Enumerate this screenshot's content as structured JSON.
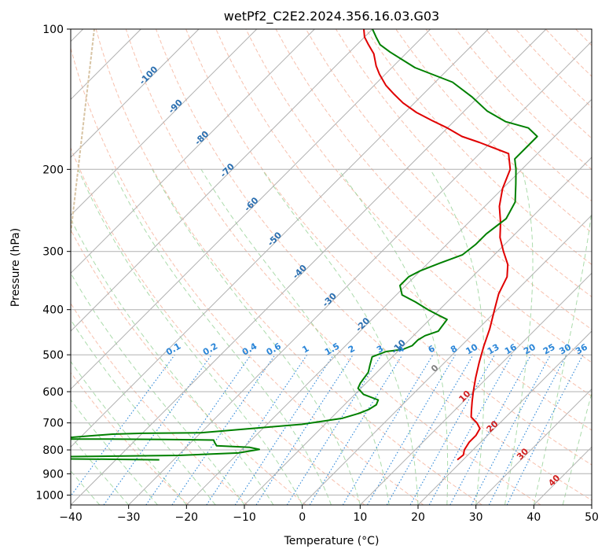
{
  "chart_data": {
    "type": "skew-t",
    "title": "wetPf2_C2E2.2024.356.16.03.G03",
    "xlabel": "Temperature (°C)",
    "ylabel": "Pressure (hPa)",
    "xlim": [
      -40,
      50
    ],
    "ylim": [
      1050,
      100
    ],
    "x_ticks": [
      "−40",
      "−30",
      "−20",
      "−10",
      "0",
      "10",
      "20",
      "30",
      "40",
      "50"
    ],
    "x_tick_values": [
      -40,
      -30,
      -20,
      -10,
      0,
      10,
      20,
      30,
      40,
      50
    ],
    "y_ticks": [
      "100",
      "200",
      "300",
      "400",
      "500",
      "600",
      "700",
      "800",
      "900",
      "1000"
    ],
    "y_tick_values": [
      100,
      200,
      300,
      400,
      500,
      600,
      700,
      800,
      900,
      1000
    ],
    "grid": true,
    "colors": {
      "temperature": "#e00000",
      "dewpoint": "#008000",
      "isotherm_grid": "#b0b0b0",
      "dry_adiabat": "#f4a58a",
      "moist_adiabat": "#8fcf8f",
      "mixing_ratio": "#2b86d8",
      "isotherm_label": "#2b6fb0",
      "positive_label": "#d02020",
      "zero_label": "#808080",
      "lcl_curve": "#d8c4a4"
    },
    "series": [
      {
        "name": "Temperature",
        "points": [
          [
            19,
            840
          ],
          [
            19.2,
            820
          ],
          [
            18.5,
            800
          ],
          [
            18,
            770
          ],
          [
            18,
            745
          ],
          [
            17.5,
            720
          ],
          [
            16,
            700
          ],
          [
            14,
            680
          ],
          [
            13,
            660
          ],
          [
            11.5,
            630
          ],
          [
            10,
            600
          ],
          [
            8,
            560
          ],
          [
            6,
            520
          ],
          [
            4,
            480
          ],
          [
            2,
            440
          ],
          [
            -0.5,
            400
          ],
          [
            -2.5,
            370
          ],
          [
            -4,
            340
          ],
          [
            -6,
            320
          ],
          [
            -9,
            300
          ],
          [
            -12,
            280
          ],
          [
            -14.5,
            260
          ],
          [
            -17.5,
            240
          ],
          [
            -20,
            220
          ],
          [
            -22,
            200
          ],
          [
            -25,
            185
          ],
          [
            -32,
            175
          ],
          [
            -36,
            170
          ],
          [
            -40,
            163
          ],
          [
            -44,
            157
          ],
          [
            -48,
            151
          ],
          [
            -52,
            144
          ],
          [
            -55,
            138
          ],
          [
            -58,
            132
          ],
          [
            -61,
            125
          ],
          [
            -63,
            120
          ],
          [
            -65.5,
            113
          ],
          [
            -68,
            108
          ],
          [
            -70,
            104
          ],
          [
            -71.5,
            100
          ]
        ]
      },
      {
        "name": "Dewpoint",
        "points": [
          [
            -32.5,
            840
          ],
          [
            -40,
            838
          ],
          [
            -55,
            835
          ],
          [
            -60,
            830
          ],
          [
            -30,
            822
          ],
          [
            -20,
            812
          ],
          [
            -17,
            798
          ],
          [
            -19,
            790
          ],
          [
            -25,
            784
          ],
          [
            -26,
            770
          ],
          [
            -26.5,
            762
          ],
          [
            -35,
            760
          ],
          [
            -45,
            758
          ],
          [
            -55,
            758
          ],
          [
            -45,
            740
          ],
          [
            -40,
            737
          ],
          [
            -30,
            735
          ],
          [
            -14,
            705
          ],
          [
            -8,
            684
          ],
          [
            -6,
            668
          ],
          [
            -5,
            655
          ],
          [
            -4.5,
            640
          ],
          [
            -5,
            625
          ],
          [
            -8.5,
            608
          ],
          [
            -10.5,
            590
          ],
          [
            -11,
            575
          ],
          [
            -11.5,
            545
          ],
          [
            -12.5,
            525
          ],
          [
            -13.5,
            505
          ],
          [
            -12,
            492
          ],
          [
            -9.5,
            487
          ],
          [
            -8.5,
            478
          ],
          [
            -8.5,
            465
          ],
          [
            -8,
            455
          ],
          [
            -6.5,
            445
          ],
          [
            -7,
            420
          ],
          [
            -9.5,
            410
          ],
          [
            -12,
            400
          ],
          [
            -15.5,
            385
          ],
          [
            -19,
            372
          ],
          [
            -21,
            355
          ],
          [
            -21,
            340
          ],
          [
            -20,
            330
          ],
          [
            -18,
            318
          ],
          [
            -15.5,
            305
          ],
          [
            -15,
            290
          ],
          [
            -15,
            275
          ],
          [
            -14.2,
            255
          ],
          [
            -15.5,
            235
          ],
          [
            -18.5,
            215
          ],
          [
            -21,
            200
          ],
          [
            -23,
            190
          ],
          [
            -23,
            175
          ],
          [
            -23,
            170
          ],
          [
            -26,
            163
          ],
          [
            -31,
            158
          ],
          [
            -36,
            150
          ],
          [
            -41,
            140
          ],
          [
            -47,
            130
          ],
          [
            -56,
            121
          ],
          [
            -63,
            112
          ],
          [
            -66,
            108
          ],
          [
            -68,
            104
          ],
          [
            -70,
            100
          ]
        ]
      }
    ],
    "isotherm_labels": [
      "-100",
      "-90",
      "-80",
      "-70",
      "-60",
      "-50",
      "-40",
      "-30",
      "-20",
      "-10"
    ],
    "isotherm_label_positions": [
      [
        -100,
        127
      ],
      [
        -90,
        148
      ],
      [
        -80,
        173
      ],
      [
        -70,
        203
      ],
      [
        -60,
        240
      ],
      [
        -50,
        285
      ],
      [
        -40,
        335
      ],
      [
        -30,
        385
      ],
      [
        -20,
        435
      ],
      [
        -10,
        485
      ]
    ],
    "positive_isotherm_labels": [
      "0",
      "10",
      "20",
      "30",
      "40"
    ],
    "positive_isotherm_positions": [
      [
        0,
        540
      ],
      [
        10,
        620
      ],
      [
        20,
        720
      ],
      [
        30,
        825
      ],
      [
        40,
        940
      ]
    ],
    "mixing_ratio_labels": [
      "0.1",
      "0.2",
      "0.4",
      "0.6",
      "1",
      "1.5",
      "2",
      "3",
      "4",
      "6",
      "8",
      "10",
      "13",
      "16",
      "20",
      "25",
      "30",
      "36"
    ],
    "mixing_ratio_values": [
      0.1,
      0.2,
      0.4,
      0.6,
      1,
      1.5,
      2,
      3,
      4,
      6,
      8,
      10,
      13,
      16,
      20,
      25,
      30,
      36
    ]
  }
}
